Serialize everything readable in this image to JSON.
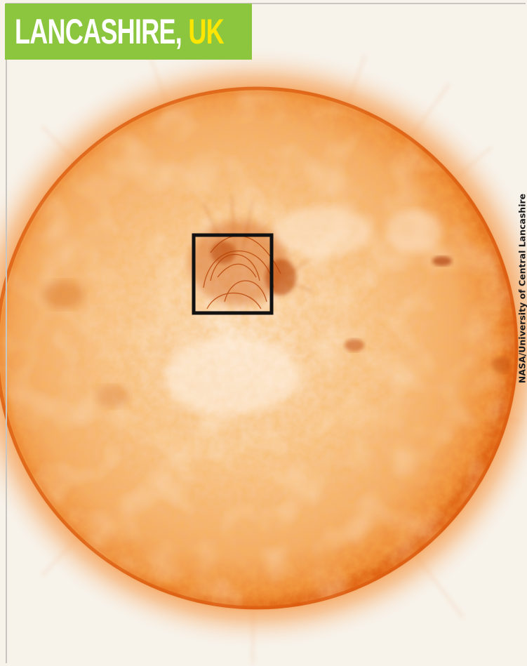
{
  "title": {
    "main": "LANCASHIRE,",
    "accent": "UK"
  },
  "credit": "NASA/University of Central Lancashire",
  "colors": {
    "banner": "#8cc63f",
    "title_text": "#ffffff",
    "title_accent": "#ffe600",
    "sun_core": "#f6b36d",
    "sun_limb": "#e0600e",
    "highlight_box": "#111111"
  },
  "image": {
    "subject": "sun-disc-image",
    "annotation": "square-highlight-box"
  }
}
